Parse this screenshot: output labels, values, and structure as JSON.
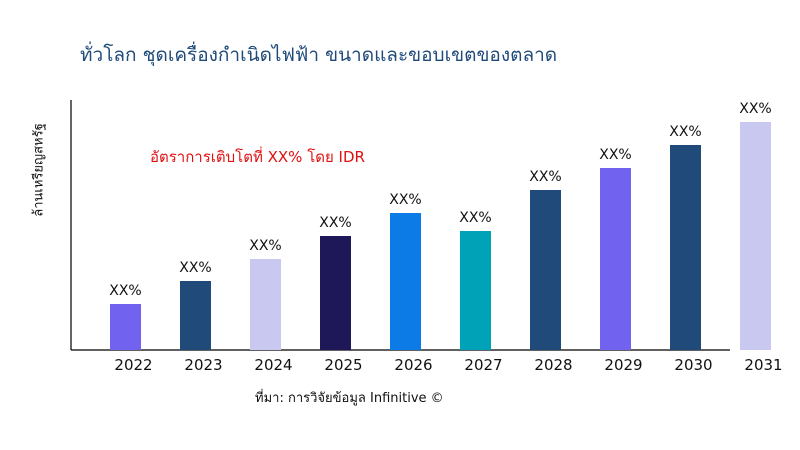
{
  "chart_data": {
    "type": "bar",
    "title": "ทั่วโลก ชุดเครื่องกำเนิดไฟฟ้า ขนาดและขอบเขตของตลาด",
    "ylabel": "ล้านเหรียญสหรัฐ",
    "xlabel": "",
    "annotation": "อัตราการเติบโตที่ XX% โดย IDR",
    "source": "ที่มา: การวิจัยข้อมูล Infinitive ©",
    "categories": [
      "2022",
      "2023",
      "2024",
      "2025",
      "2026",
      "2027",
      "2028",
      "2029",
      "2030",
      "2031"
    ],
    "values": [
      46,
      69,
      91,
      114,
      137,
      119,
      160,
      182,
      205,
      228
    ],
    "data_labels": [
      "XX%",
      "XX%",
      "XX%",
      "XX%",
      "XX%",
      "XX%",
      "XX%",
      "XX%",
      "XX%",
      "XX%"
    ],
    "colors": [
      "#7163f0",
      "#1f4a7a",
      "#c8c8f0",
      "#1e1858",
      "#0c7be6",
      "#00a2b8",
      "#1f4a7a",
      "#7163f0",
      "#1f4a7a",
      "#c8c8f0"
    ],
    "ylim": [
      0,
      250
    ],
    "grid": false,
    "legend": "none"
  }
}
